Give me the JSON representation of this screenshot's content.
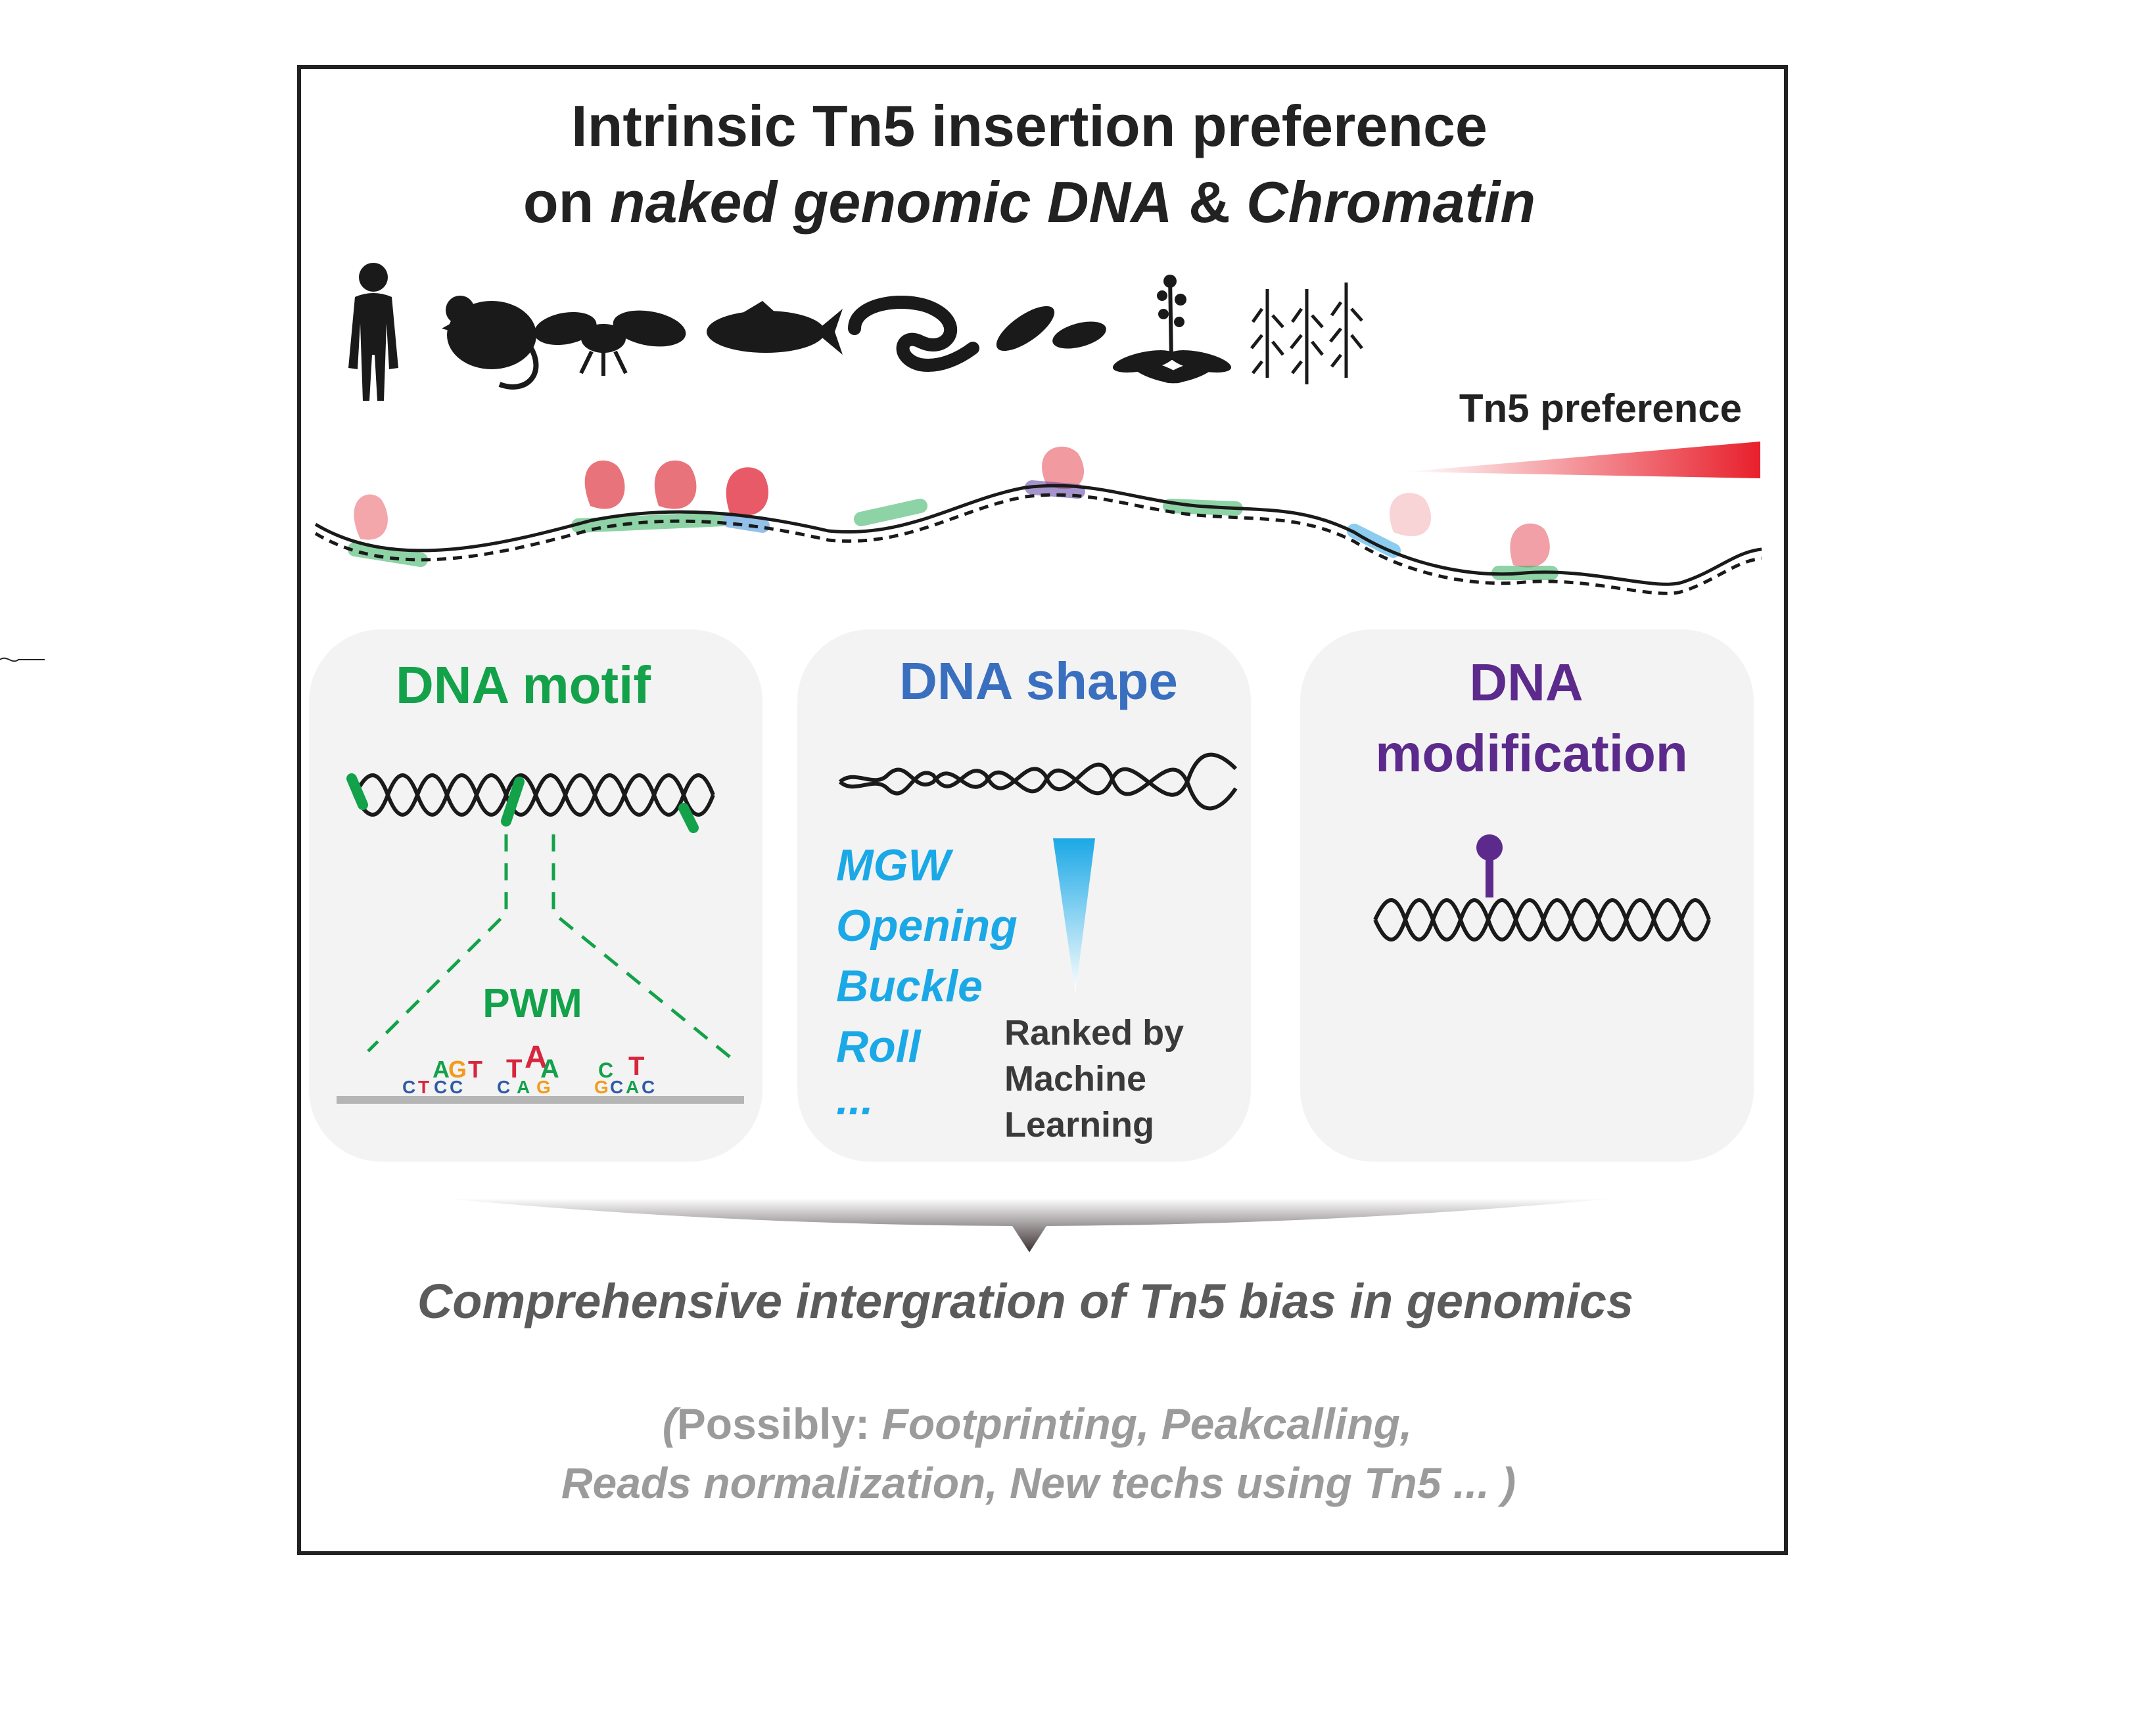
{
  "title": {
    "line1": "Intrinsic Tn5 insertion preference",
    "line2_prefix": "on ",
    "line2_italic1": "naked genomic DNA",
    "line2_mid": " & ",
    "line2_italic2": "Chromatin"
  },
  "organisms": [
    "human",
    "mouse",
    "fly",
    "fish",
    "worm",
    "yeast",
    "arabidopsis",
    "maize"
  ],
  "preference_label": "Tn5 preference",
  "colors": {
    "motif": "#13a24a",
    "shape": "#3a6fc0",
    "shape_features": "#1ba8e6",
    "modification": "#5c2a8c",
    "insertion": "#e85a67",
    "frame": "#222222"
  },
  "panels": {
    "motif": {
      "title": "DNA motif",
      "pwm_label": "PWM",
      "logo_top": [
        "A",
        "G",
        "T",
        "T",
        "A",
        "A",
        "C",
        "T"
      ],
      "logo_mid": [
        "C",
        "T",
        "C",
        "C",
        "C",
        "A",
        "G",
        "G",
        "C",
        "A",
        "C"
      ]
    },
    "shape": {
      "title": "DNA shape",
      "features": [
        "MGW",
        "Opening",
        "Buckle",
        "Roll",
        "..."
      ],
      "ranked_lines": [
        "Ranked by",
        "Machine",
        "Learning"
      ]
    },
    "modification": {
      "title_line1": "DNA",
      "title_line2": "modification"
    }
  },
  "integration": "Comprehensive intergration of Tn5 bias in genomics",
  "applications": {
    "open": "(",
    "possibly": "Possibly: ",
    "line1_italic": "Footprinting, Peakcalling,",
    "line2": "Reads normalization, New techs using Tn5 ... )"
  }
}
